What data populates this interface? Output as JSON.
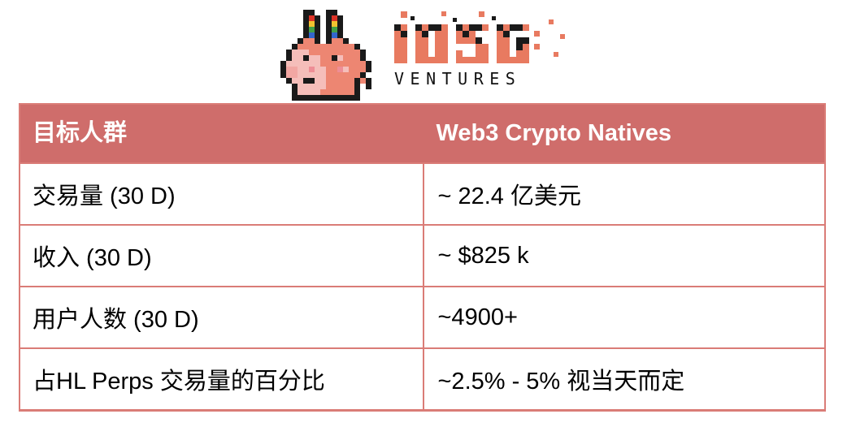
{
  "logo": {
    "name": "IOSG Ventures logo",
    "iosg_label": "IOSG",
    "ventures_label": "VENTURES",
    "llama_icon": "pixel-llama-icon"
  },
  "table": {
    "header": {
      "col1": "目标人群",
      "col2": "Web3 Crypto Natives"
    },
    "rows": [
      {
        "label": "交易量 (30 D)",
        "value": "~ 22.4 亿美元"
      },
      {
        "label": "收入 (30 D)",
        "value": "~ $825 k"
      },
      {
        "label": "用户人数 (30 D)",
        "value": "~4900+"
      },
      {
        "label": "占HL Perps 交易量的百分比",
        "value": "~2.5% - 5% 视当天而定"
      }
    ]
  },
  "colors": {
    "header_bg": "#CF6D6B",
    "border": "#DA7C77",
    "logo_salmon": "#E87A60",
    "llama_body": "#ED8672",
    "llama_face": "#F5BEBA",
    "llama_cheek": "#EE8E96",
    "llama_nose": "#F2A7A3",
    "header_text": "#FFFFFF",
    "body_text": "#000000"
  }
}
